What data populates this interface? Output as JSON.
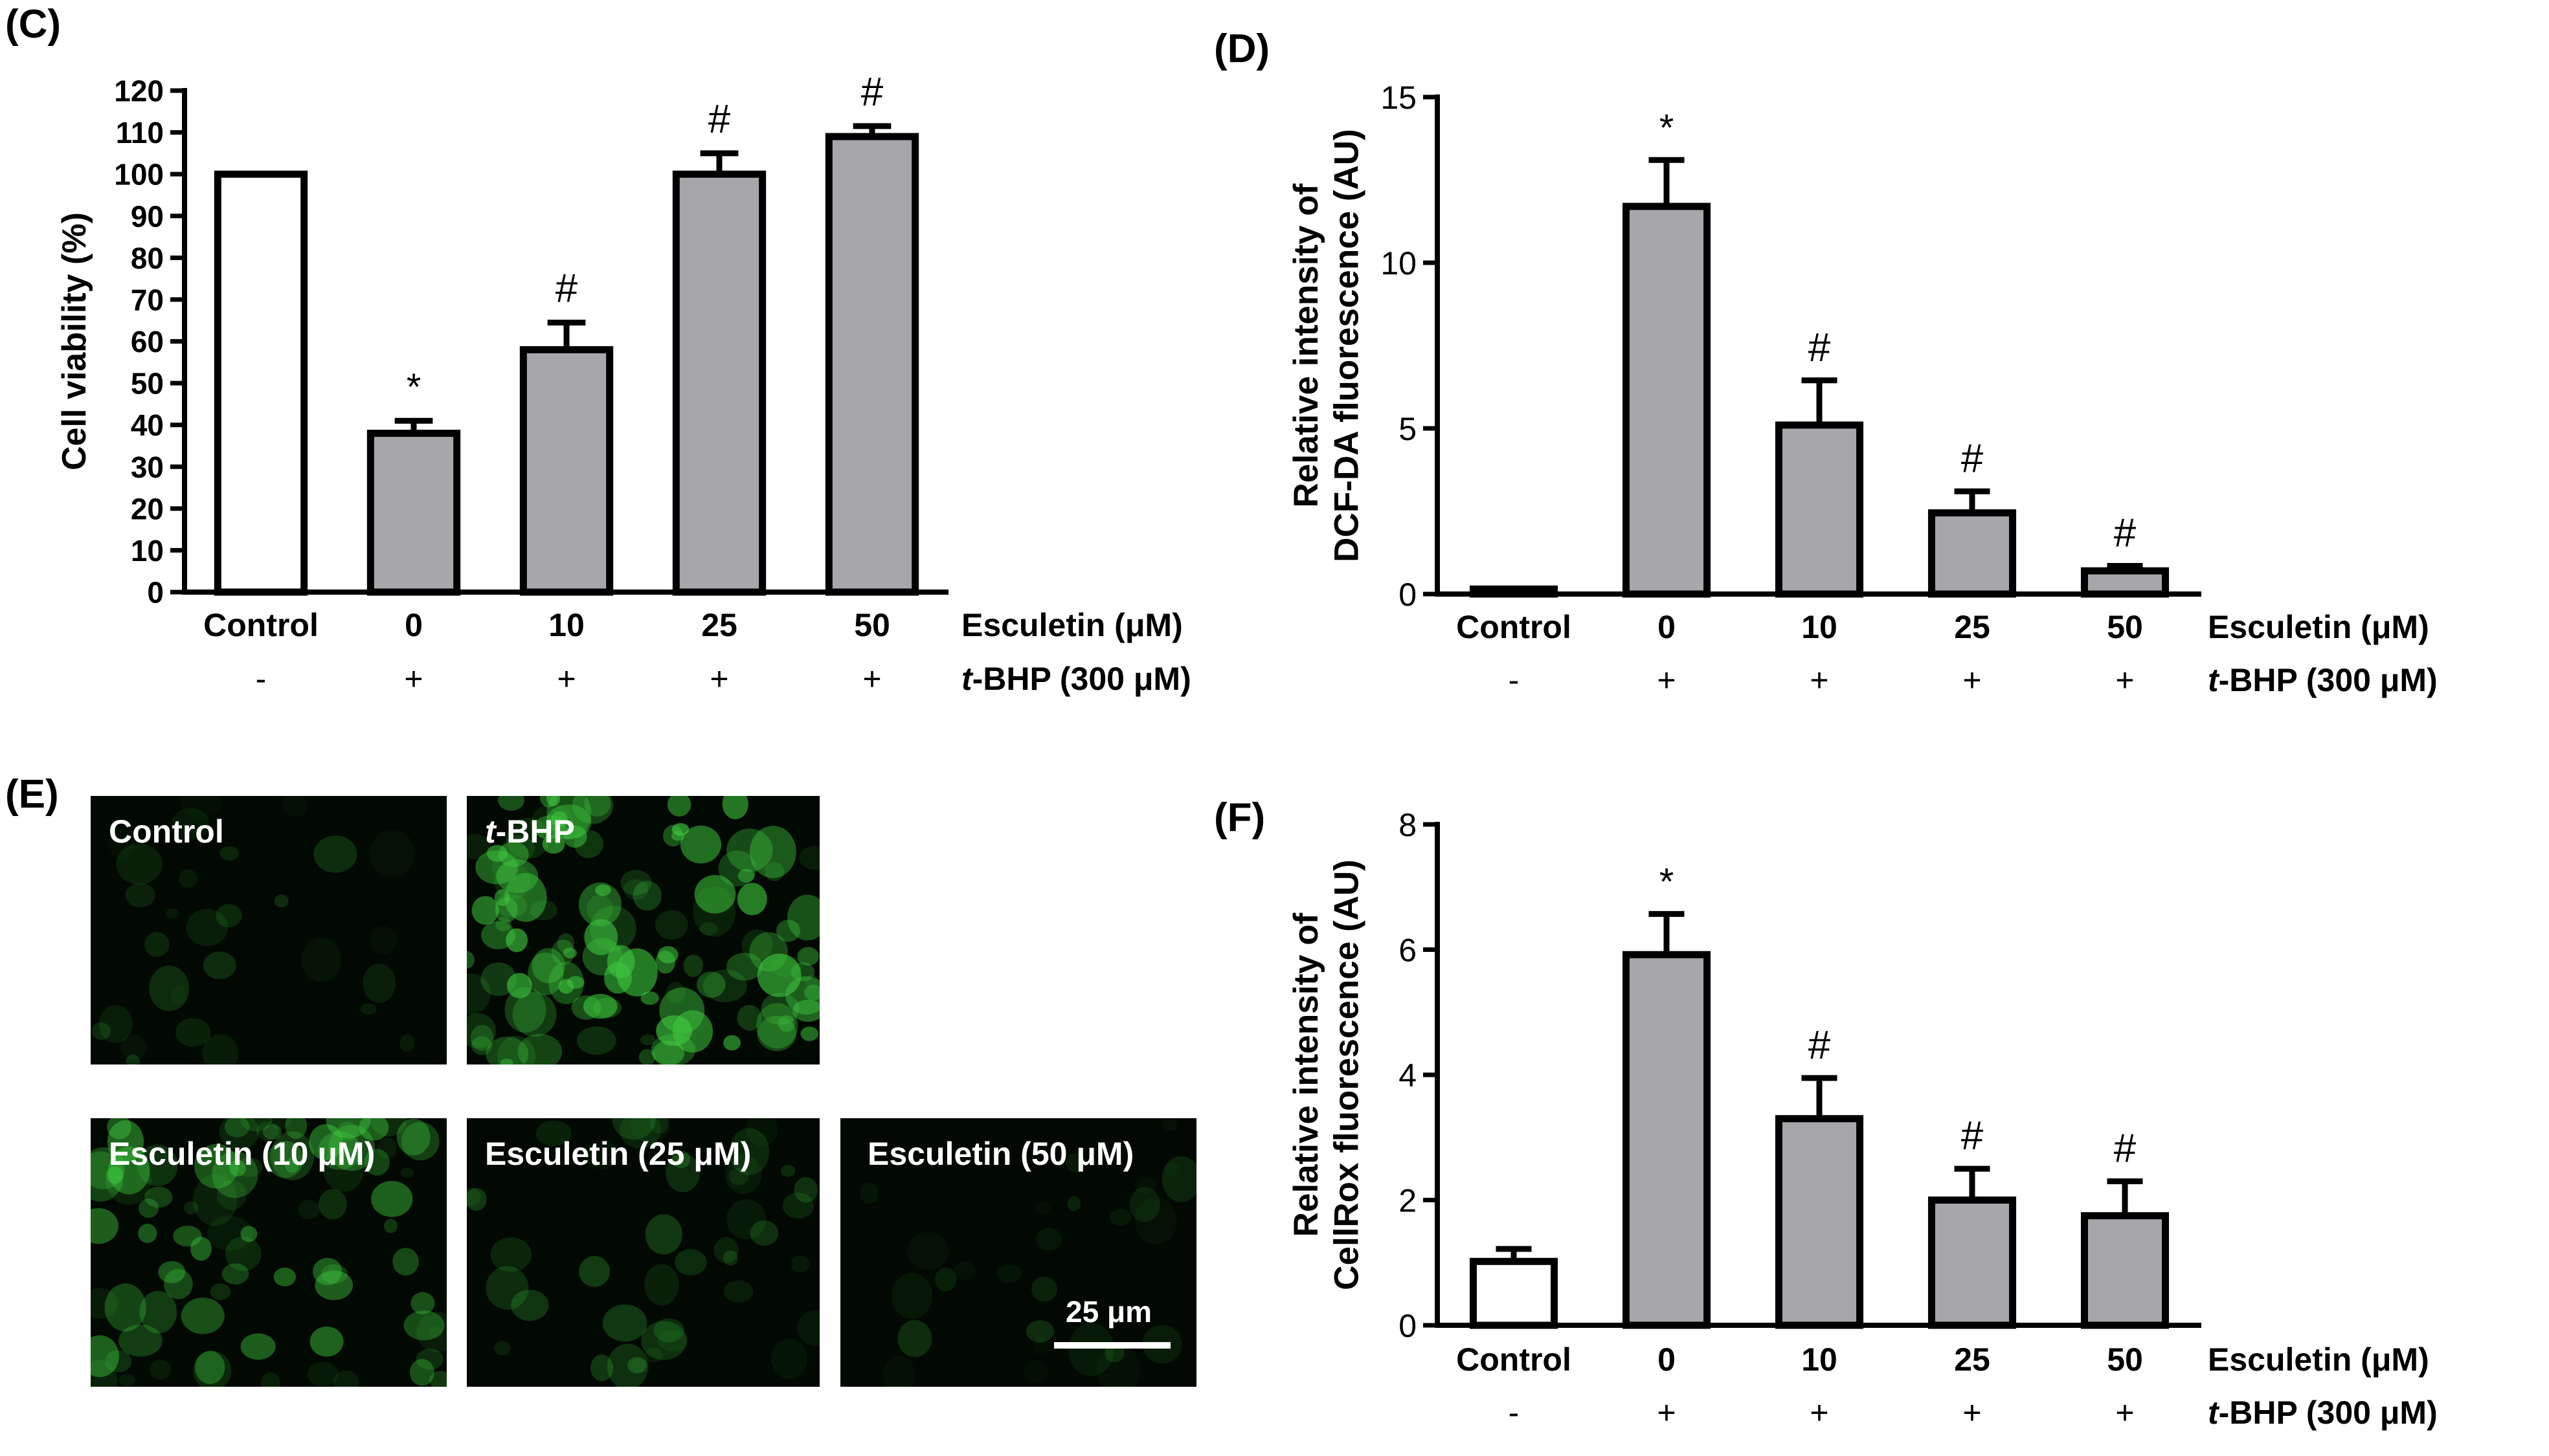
{
  "panels": {
    "c": "(C)",
    "d": "(D)",
    "e": "(E)",
    "f": "(F)"
  },
  "colors": {
    "control_bar": "#ffffff",
    "treated_bar": "#a6a6ab",
    "stroke": "#000000",
    "fluorescence_bg": "#020802",
    "fluorescence_cell": "#3ec83e"
  },
  "chart_data": [
    {
      "id": "C",
      "type": "bar",
      "title": "",
      "ylabel": "Cell viability (%)",
      "xlabel": "",
      "ylim": [
        0,
        120
      ],
      "yticks": [
        0,
        10,
        20,
        30,
        40,
        50,
        60,
        70,
        80,
        90,
        100,
        110,
        120
      ],
      "categories": [
        "Control",
        "0",
        "10",
        "25",
        "50"
      ],
      "values": [
        100,
        38,
        58,
        100,
        109
      ],
      "errors": [
        0,
        3,
        6.5,
        5,
        2.5
      ],
      "significance": [
        "",
        "*",
        "#",
        "#",
        "#"
      ],
      "row_labels": [
        "Esculetin (μM)",
        "t-BHP (300 μM)"
      ],
      "treatment_signs": [
        "-",
        "+",
        "+",
        "+",
        "+"
      ],
      "grid": false
    },
    {
      "id": "D",
      "type": "bar",
      "title": "",
      "ylabel": "Relative intensity of DCF-DA fluorescence (AU)",
      "xlabel": "",
      "ylim": [
        0,
        15
      ],
      "yticks": [
        0,
        5,
        10,
        15
      ],
      "categories": [
        "Control",
        "0",
        "10",
        "25",
        "50"
      ],
      "values": [
        0.15,
        11.7,
        5.1,
        2.45,
        0.7
      ],
      "errors": [
        0,
        1.4,
        1.35,
        0.65,
        0.15
      ],
      "significance": [
        "",
        "*",
        "#",
        "#",
        "#"
      ],
      "row_labels": [
        "Esculetin (μM)",
        "t-BHP (300 μM)"
      ],
      "treatment_signs": [
        "-",
        "+",
        "+",
        "+",
        "+"
      ],
      "grid": false
    },
    {
      "id": "F",
      "type": "bar",
      "title": "",
      "ylabel": "Relative intensity of CellRox fluorescence (AU)",
      "xlabel": "",
      "ylim": [
        0,
        8
      ],
      "yticks": [
        0,
        2,
        4,
        6,
        8
      ],
      "categories": [
        "Control",
        "0",
        "10",
        "25",
        "50"
      ],
      "values": [
        1.02,
        5.92,
        3.3,
        2.0,
        1.75
      ],
      "errors": [
        0.2,
        0.65,
        0.65,
        0.5,
        0.55
      ],
      "significance": [
        "",
        "*",
        "#",
        "#",
        "#"
      ],
      "row_labels": [
        "Esculetin (μM)",
        "t-BHP (300 μM)"
      ],
      "treatment_signs": [
        "-",
        "+",
        "+",
        "+",
        "+"
      ],
      "grid": false
    }
  ],
  "micrographs": [
    {
      "label": "Control",
      "level": 0.08
    },
    {
      "label": "t-BHP",
      "level": 0.9
    },
    {
      "label": "Esculetin (10 μM)",
      "level": 0.6
    },
    {
      "label": "Esculetin (25 μM)",
      "level": 0.2
    },
    {
      "label": "Esculetin (50 μM)",
      "level": 0.06
    }
  ],
  "scale_bar": {
    "label": "25 μm"
  }
}
